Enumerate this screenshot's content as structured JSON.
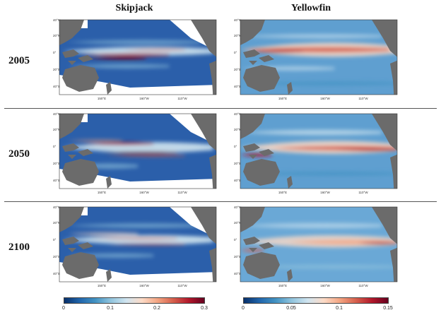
{
  "columns": [
    {
      "title": "Skipjack",
      "colorbar": {
        "ticks": [
          "0",
          "0.1",
          "0.2",
          "0.3"
        ]
      }
    },
    {
      "title": "Yellowfin",
      "colorbar": {
        "ticks": [
          "0",
          "0.05",
          "0.1",
          "0.15"
        ]
      }
    }
  ],
  "rows": [
    {
      "year": "2005"
    },
    {
      "year": "2050"
    },
    {
      "year": "2100"
    }
  ],
  "map_axes": {
    "lat_ticks": [
      "40°N",
      "20°N",
      "0°",
      "20°S",
      "40°S"
    ],
    "lon_ticks": [
      "150°E",
      "160°W",
      "110°W"
    ]
  },
  "colorscale": [
    "#08306b",
    "#2166ac",
    "#4393c3",
    "#92c5de",
    "#d1e5f0",
    "#fddbc7",
    "#f4a582",
    "#d6604d",
    "#b2182b",
    "#67001f"
  ]
}
